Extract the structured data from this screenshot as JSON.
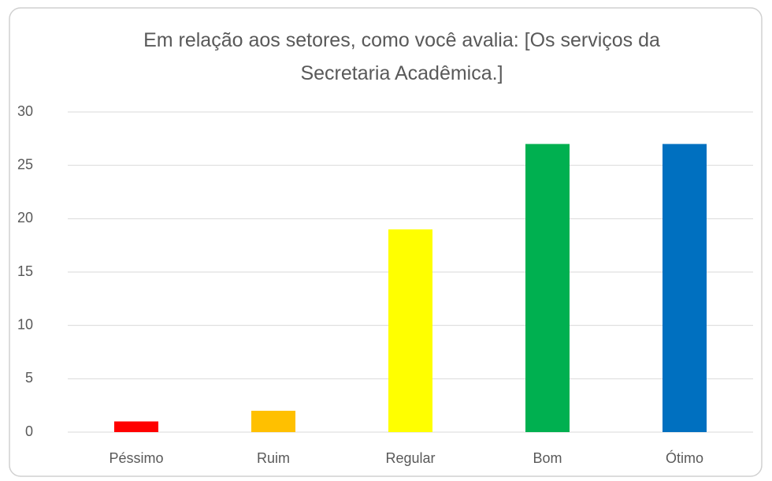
{
  "chart_data": {
    "type": "bar",
    "title": "Em relação aos setores, como você avalia: [Os serviços da Secretaria Acadêmica.]",
    "categories": [
      "Péssimo",
      "Ruim",
      "Regular",
      "Bom",
      "Ótimo"
    ],
    "values": [
      1,
      2,
      19,
      27,
      27
    ],
    "colors": [
      "#ff0000",
      "#ffc000",
      "#ffff00",
      "#00b050",
      "#0070c0"
    ],
    "ylim": [
      0,
      30
    ],
    "yticks": [
      0,
      5,
      10,
      15,
      20,
      25,
      30
    ],
    "grid": true
  }
}
